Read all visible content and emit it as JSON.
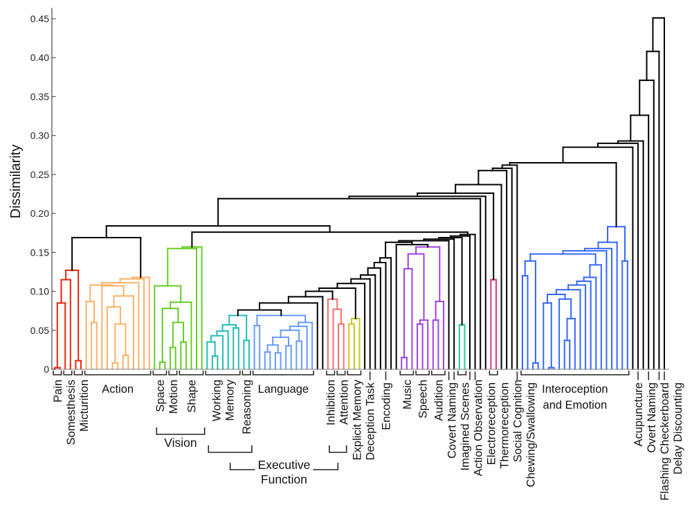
{
  "chart_data": {
    "type": "dendrogram",
    "ylabel": "Dissimilarity",
    "ylim": [
      0,
      0.46
    ],
    "yticks": [
      {
        "value": 0,
        "label": "0"
      },
      {
        "value": 0.05,
        "label": "0.05"
      },
      {
        "value": 0.1,
        "label": "0.10"
      },
      {
        "value": 0.15,
        "label": "0.15"
      },
      {
        "value": 0.2,
        "label": "0.20"
      },
      {
        "value": 0.25,
        "label": "0.25"
      },
      {
        "value": 0.3,
        "label": "0.30"
      },
      {
        "value": 0.35,
        "label": "0.35"
      },
      {
        "value": 0.4,
        "label": "0.40"
      },
      {
        "value": 0.45,
        "label": "0.45"
      }
    ],
    "grid": false,
    "default_color": "#000000",
    "tree": {
      "h": 0.451,
      "c": [
        {
          "h": 0.408,
          "c": [
            {
              "h": 0.371,
              "c": [
                {
                  "h": 0.326,
                  "c": [
                    {
                      "h": 0.293,
                      "c": [
                        {
                          "h": 0.29,
                          "c": [
                            {
                              "h": 0.285,
                              "c": [
                                {
                                  "h": 0.265,
                                  "c": [
                                    "s6",
                                    "b2"
                                  ]
                                },
                                0
                              ]
                            },
                            0
                          ]
                        },
                        0
                      ]
                    },
                    0
                  ]
                },
                0
              ]
            },
            0
          ]
        },
        0
      ]
    },
    "clusters": {
      "red": {
        "h": 0.127,
        "color": "#e8250c",
        "c": [
          {
            "h": 0.115,
            "c": [
              {
                "h": 0.085,
                "c": [
                  {
                    "h": 0.002,
                    "c": [
                      0,
                      0
                    ]
                  },
                  0
                ]
              },
              0
            ]
          },
          {
            "h": 0.011,
            "c": [
              0,
              0
            ]
          }
        ]
      },
      "orange": {
        "h": 0.118,
        "color": "#ffb066",
        "c": [
          {
            "h": 0.116,
            "c": [
              {
                "h": 0.111,
                "c": [
                  {
                    "h": 0.108,
                    "c": [
                      "orA",
                      "orB"
                    ]
                  },
                  0
                ]
              },
              0
            ]
          },
          0
        ]
      },
      "orA": {
        "h": 0.087,
        "c": [
          0,
          {
            "h": 0.06,
            "c": [
              0,
              0
            ]
          }
        ]
      },
      "orB": {
        "h": 0.107,
        "c": [
          0,
          {
            "h": 0.094,
            "c": [
              "orC",
              0
            ]
          }
        ]
      },
      "orC": {
        "h": 0.08,
        "c": [
          0,
          {
            "h": 0.058,
            "c": [
              {
                "h": 0.008,
                "c": [
                  0,
                  0
                ]
              },
              {
                "h": 0.018,
                "c": [
                  0,
                  0
                ]
              }
            ]
          }
        ]
      },
      "ro": {
        "h": 0.169,
        "c": [
          "red",
          "orange"
        ]
      },
      "green": {
        "h": 0.157,
        "color": "#66cc22",
        "c": [
          {
            "h": 0.155,
            "c": [
              {
                "h": 0.107,
                "c": [
                  0,
                  "grA"
                ]
              },
              0
            ]
          },
          0
        ]
      },
      "grA": {
        "h": 0.086,
        "c": [
          {
            "h": 0.078,
            "c": [
              {
                "h": 0.009,
                "c": [
                  0,
                  0
                ]
              },
              {
                "h": 0.06,
                "c": [
                  {
                    "h": 0.028,
                    "c": [
                      0,
                      0
                    ]
                  },
                  {
                    "h": 0.035,
                    "c": [
                      0,
                      0
                    ]
                  }
                ]
              }
            ]
          },
          0
        ]
      },
      "cyan": {
        "h": 0.069,
        "color": "#22bbbb",
        "c": [
          {
            "h": 0.057,
            "c": [
              "cyA",
              {
                "h": 0.053,
                "c": [
                  0,
                  0
                ]
              }
            ]
          },
          {
            "h": 0.037,
            "c": [
              0,
              0
            ]
          }
        ]
      },
      "cyA": {
        "h": 0.049,
        "c": [
          {
            "h": 0.043,
            "c": [
              {
                "h": 0.035,
                "c": [
                  0,
                  {
                    "h": 0.017,
                    "c": [
                      0,
                      0
                    ]
                  }
                ]
              },
              0
            ]
          },
          0
        ]
      },
      "blue": {
        "h": 0.069,
        "color": "#6699ff",
        "c": [
          {
            "h": 0.056,
            "c": [
              0,
              0
            ]
          },
          {
            "h": 0.06,
            "c": [
              {
                "h": 0.055,
                "c": [
                  "blA",
                  0
                ]
              },
              0
            ]
          }
        ]
      },
      "blA": {
        "h": 0.05,
        "c": [
          {
            "h": 0.041,
            "c": [
              {
                "h": 0.031,
                "c": [
                  {
                    "h": 0.022,
                    "c": [
                      0,
                      0
                    ]
                  },
                  {
                    "h": 0.021,
                    "c": [
                      0,
                      0
                    ]
                  }
                ]
              },
              {
                "h": 0.03,
                "c": [
                  0,
                  0
                ]
              }
            ]
          },
          {
            "h": 0.036,
            "c": [
              0,
              0
            ]
          }
        ]
      },
      "cb": {
        "h": 0.076,
        "c": [
          "cyan",
          "blue"
        ]
      },
      "inhib": {
        "h": 0.09,
        "color": "#ff6b6b",
        "c": [
          0,
          {
            "h": 0.077,
            "c": [
              0,
              {
                "h": 0.058,
                "c": [
                  0,
                  0
                ]
              }
            ]
          }
        ]
      },
      "yellow": {
        "h": 0.065,
        "color": "#c8c820",
        "c": [
          {
            "h": 0.058,
            "c": [
              0,
              0
            ]
          },
          0
        ]
      },
      "m4": {
        "h": 0.104,
        "c": [
          {
            "h": 0.1,
            "c": [
              {
                "h": 0.093,
                "c": [
                  {
                    "h": 0.085,
                    "c": [
                      "cb",
                      0
                    ]
                  },
                  0
                ]
              },
              "inhib"
            ]
          },
          "yellow"
        ]
      },
      "m10": {
        "h": 0.143,
        "c": [
          {
            "h": 0.137,
            "c": [
              {
                "h": 0.13,
                "c": [
                  {
                    "h": 0.121,
                    "c": [
                      {
                        "h": 0.116,
                        "c": [
                          {
                            "h": 0.11,
                            "c": [
                              "m4",
                              0
                            ]
                          },
                          0
                        ]
                      },
                      0
                    ]
                  },
                  0
                ]
              },
              0
            ]
          },
          0
        ]
      },
      "purple": {
        "h": 0.157,
        "color": "#a040e0",
        "c": [
          {
            "h": 0.148,
            "c": [
              {
                "h": 0.129,
                "c": [
                  {
                    "h": 0.015,
                    "c": [
                      0,
                      0
                    ]
                  },
                  0
                ]
              },
              {
                "h": 0.063,
                "c": [
                  {
                    "h": 0.058,
                    "c": [
                      0,
                      0
                    ]
                  },
                  0
                ]
              }
            ]
          },
          {
            "h": 0.087,
            "c": [
              {
                "h": 0.063,
                "c": [
                  0,
                  0
                ]
              },
              0
            ]
          }
        ]
      },
      "actobs": {
        "h": 0.057,
        "color": "#1fcc99",
        "c": [
          0,
          0
        ]
      },
      "m14": {
        "h": 0.169,
        "c": [
          {
            "h": 0.167,
            "c": [
              {
                "h": 0.165,
                "c": [
                  {
                    "h": 0.163,
                    "c": [
                      "m10",
                      {
                        "h": 0.16,
                        "c": [
                          0,
                          "purple"
                        ]
                      }
                    ]
                  },
                  0
                ]
              },
              0
            ]
          },
          "actobs"
        ]
      },
      "m16": {
        "h": 0.173,
        "c": [
          {
            "h": 0.171,
            "c": [
              "m14",
              0
            ]
          },
          0
        ]
      },
      "mega": {
        "h": 0.184,
        "c": [
          "ro",
          {
            "h": 0.176,
            "c": [
              "green",
              "m16"
            ]
          }
        ]
      },
      "social": {
        "h": 0.115,
        "color": "#e0308a",
        "c": [
          0,
          0
        ]
      },
      "s2": {
        "h": 0.226,
        "c": [
          {
            "h": 0.222,
            "c": [
              {
                "h": 0.219,
                "c": [
                  "mega",
                  0
                ]
              },
              0
            ]
          },
          "social"
        ]
      },
      "s6": {
        "h": 0.262,
        "c": [
          {
            "h": 0.258,
            "c": [
              {
                "h": 0.255,
                "c": [
                  {
                    "h": 0.237,
                    "c": [
                      "s2",
                      0
                    ]
                  },
                  0
                ]
              },
              0
            ]
          },
          0
        ]
      },
      "b2": {
        "h": 0.183,
        "color": "#3366ff",
        "c": [
          {
            "h": 0.163,
            "c": [
              {
                "h": 0.155,
                "c": [
                  {
                    "h": 0.152,
                    "c": [
                      {
                        "h": 0.148,
                        "c": [
                          "b2L",
                          "b2R"
                        ]
                      },
                      0
                    ]
                  },
                  0
                ]
              },
              0
            ]
          },
          {
            "h": 0.139,
            "c": [
              0,
              0
            ]
          }
        ]
      },
      "b2L": {
        "h": 0.139,
        "c": [
          {
            "h": 0.12,
            "c": [
              0,
              0
            ]
          },
          {
            "h": 0.008,
            "c": [
              0,
              0
            ]
          }
        ]
      },
      "b2R": {
        "h": 0.134,
        "c": [
          {
            "h": 0.118,
            "c": [
              {
                "h": 0.113,
                "c": [
                  {
                    "h": 0.108,
                    "c": [
                      {
                        "h": 0.102,
                        "c": [
                          "b2C",
                          0
                        ]
                      },
                      0
                    ]
                  },
                  0
                ]
              },
              0
            ]
          },
          0
        ]
      },
      "b2C": {
        "h": 0.096,
        "c": [
          {
            "h": 0.085,
            "c": [
              0,
              {
                "h": 0.002,
                "c": [
                  0,
                  0
                ]
              }
            ]
          },
          {
            "h": 0.09,
            "c": [
              0,
              {
                "h": 0.065,
                "c": [
                  {
                    "h": 0.037,
                    "c": [
                      0,
                      0
                    ]
                  },
                  0
                ]
              }
            ]
          }
        ]
      }
    },
    "leaf_groups": [
      {
        "label": "Pain",
        "from": 0,
        "to": 1,
        "orient": "vertical"
      },
      {
        "label": "Somesthesis",
        "from": 2,
        "to": 3,
        "orient": "vertical"
      },
      {
        "label": "Micturition",
        "from": 4,
        "to": 5,
        "orient": "vertical"
      },
      {
        "label": "Action",
        "from": 6,
        "to": 18,
        "orient": "horizontal"
      },
      {
        "label": "Space",
        "from": 19,
        "to": 21,
        "orient": "vertical"
      },
      {
        "label": "Motion",
        "from": 22,
        "to": 23,
        "orient": "vertical"
      },
      {
        "label": "Shape",
        "from": 24,
        "to": 28,
        "orient": "vertical"
      },
      {
        "label": "Working\nMemory",
        "from": 29,
        "to": 35,
        "orient": "vertical"
      },
      {
        "label": "Reasoning",
        "from": 36,
        "to": 37,
        "orient": "vertical"
      },
      {
        "label": "Language",
        "from": 38,
        "to": 49,
        "orient": "horizontal"
      },
      {
        "label": "Inhibition",
        "from": 52,
        "to": 53,
        "orient": "vertical"
      },
      {
        "label": "Attention",
        "from": 54,
        "to": 55,
        "orient": "vertical"
      },
      {
        "label": "Explicit Memory",
        "from": 56,
        "to": 58,
        "orient": "vertical"
      },
      {
        "label": "Deception Task",
        "from": 60,
        "to": 60,
        "orient": "vertical"
      },
      {
        "label": "Encoding",
        "from": 63,
        "to": 63,
        "orient": "vertical"
      },
      {
        "label": "Music",
        "from": 66,
        "to": 68,
        "orient": "vertical"
      },
      {
        "label": "Speech",
        "from": 69,
        "to": 71,
        "orient": "vertical"
      },
      {
        "label": "Audition",
        "from": 72,
        "to": 74,
        "orient": "vertical"
      },
      {
        "label": "Covert Naming",
        "from": 75,
        "to": 75,
        "orient": "vertical"
      },
      {
        "label": "Imagined Scenes",
        "from": 76,
        "to": 76,
        "orient": "vertical"
      },
      {
        "label": "Action Observation",
        "from": 77,
        "to": 78,
        "orient": "vertical"
      },
      {
        "label": "Electroreception",
        "from": 79,
        "to": 79,
        "orient": "vertical"
      },
      {
        "label": "Thermoreception",
        "from": 80,
        "to": 80,
        "orient": "vertical"
      },
      {
        "label": "Social Cognition",
        "from": 83,
        "to": 84,
        "orient": "vertical"
      },
      {
        "label": "Chewing/Swallowing",
        "from": 88,
        "to": 88,
        "orient": "vertical"
      },
      {
        "label": "Interoception\nand Emotion",
        "from": 89,
        "to": 109,
        "orient": "horizontal"
      },
      {
        "label": "Acupuncture",
        "from": 111,
        "to": 111,
        "orient": "vertical"
      },
      {
        "label": "Overt Naming",
        "from": 113,
        "to": 113,
        "orient": "vertical"
      },
      {
        "label": "Flashing Checkerboard",
        "from": 115,
        "to": 115,
        "orient": "vertical"
      },
      {
        "label": "Delay Discounting",
        "from": 116,
        "to": 116,
        "orient": "vertical"
      }
    ],
    "super_groups": [
      {
        "label": "Vision",
        "ranges": [
          [
            19,
            28
          ]
        ]
      },
      {
        "label": "Executive\nFunction",
        "ranges": [
          [
            29,
            37
          ],
          [
            52,
            55
          ]
        ]
      }
    ]
  }
}
